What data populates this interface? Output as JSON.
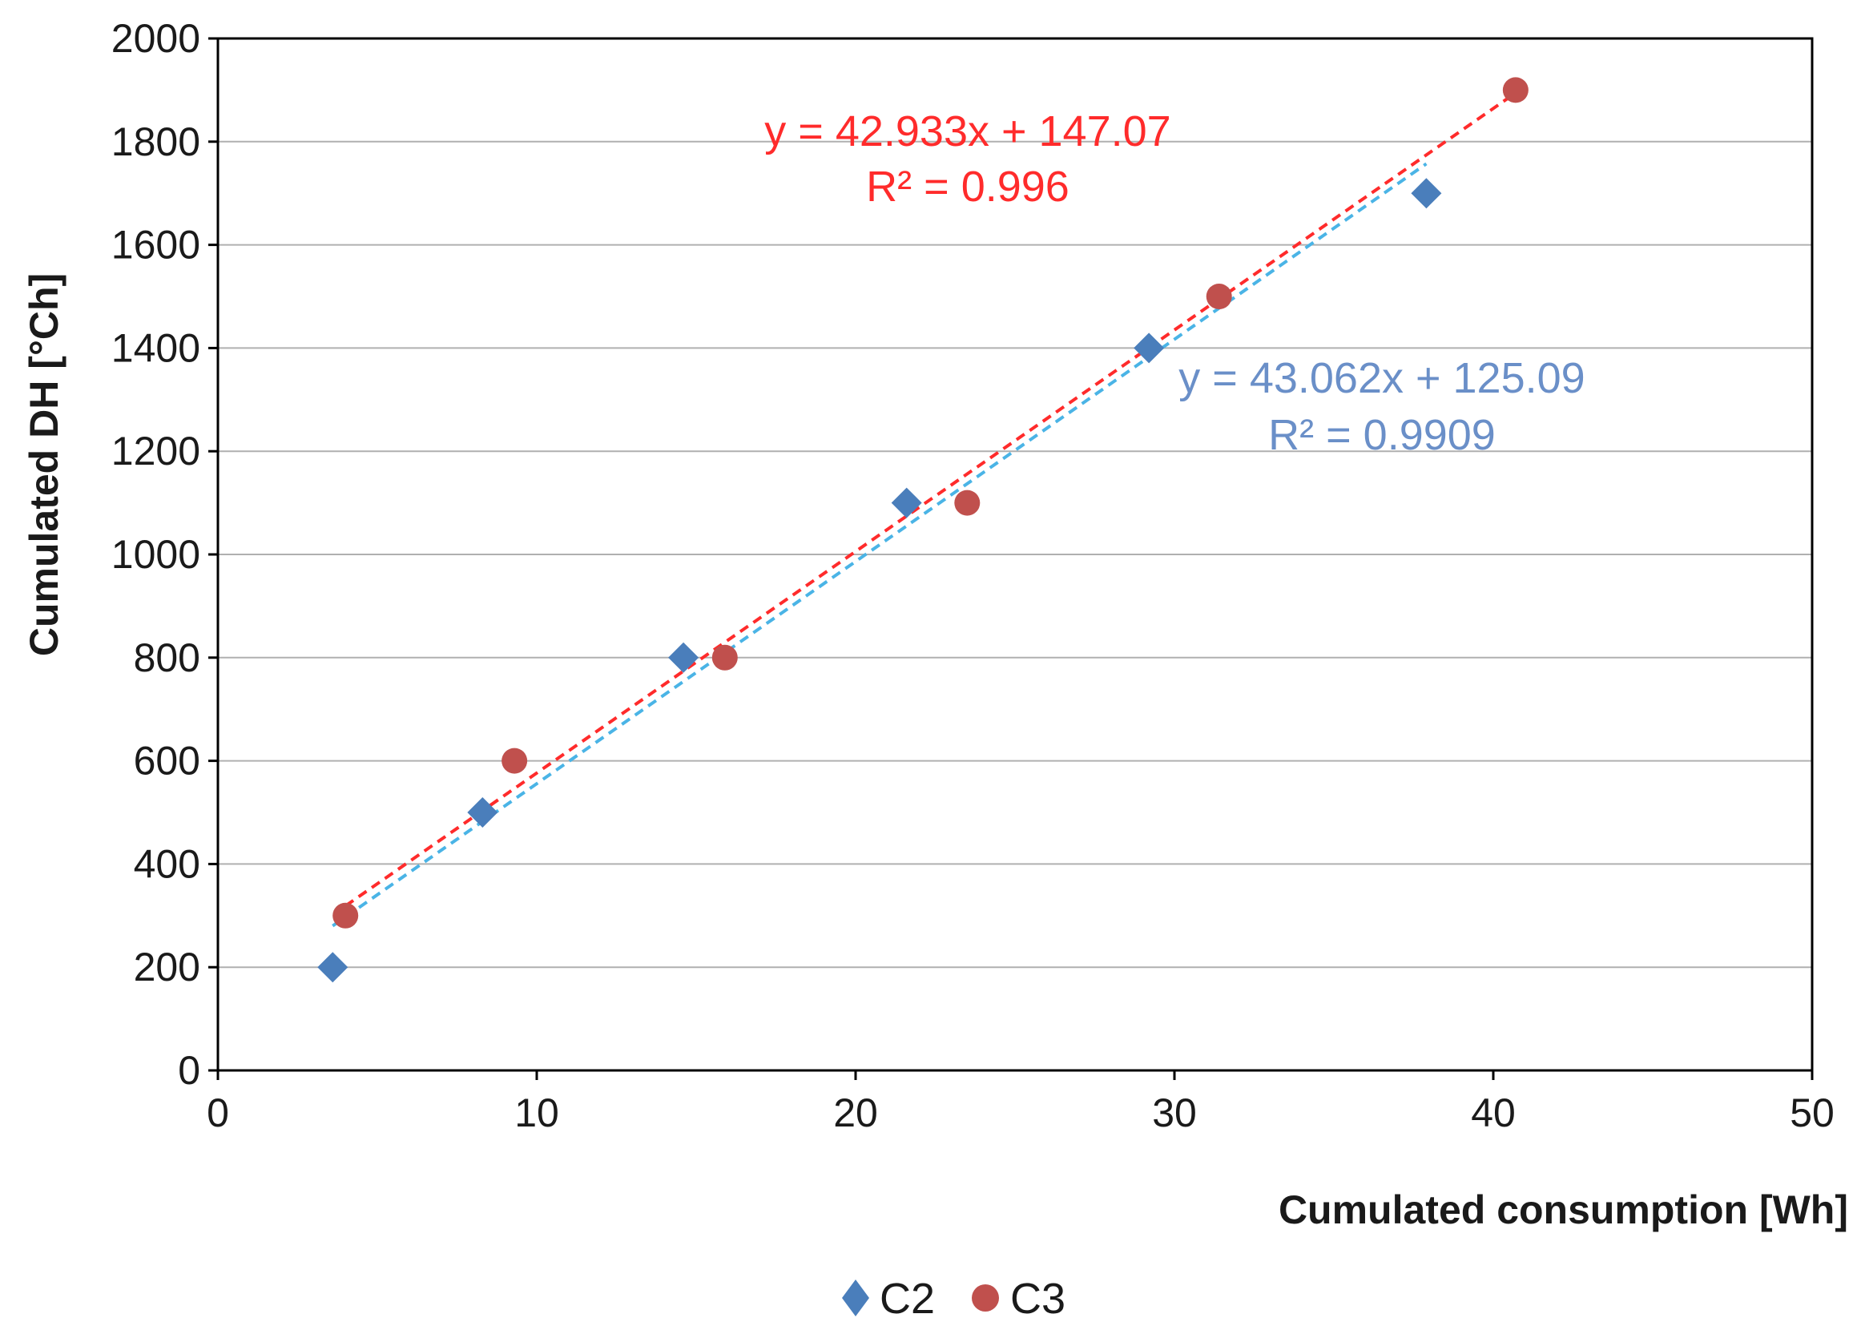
{
  "chart_data": {
    "type": "scatter",
    "title": "",
    "xlabel": "Cumulated  consumption  [Wh]",
    "ylabel": "Cumulated DH [°Ch]",
    "xlim": [
      0,
      50
    ],
    "ylim": [
      0,
      2000
    ],
    "xticks": [
      0,
      10,
      20,
      30,
      40,
      50
    ],
    "yticks": [
      0,
      200,
      400,
      600,
      800,
      1000,
      1200,
      1400,
      1600,
      1800,
      2000
    ],
    "grid": "horizontal",
    "legend_position": "bottom",
    "series": [
      {
        "name": "C2",
        "marker": "diamond",
        "color": "#4a7ebb",
        "trend_color": "#4ab4e6",
        "x": [
          3.6,
          8.3,
          14.6,
          21.6,
          29.2,
          37.9
        ],
        "y": [
          200,
          500,
          800,
          1100,
          1400,
          1700
        ],
        "trendline": {
          "slope": 43.062,
          "intercept": 125.09,
          "x_range": [
            3.6,
            37.9
          ],
          "equation": "y = 43.062x  + 125.09",
          "r2": "R² = 0.9909",
          "label_color": "#6a8fc8"
        }
      },
      {
        "name": "C3",
        "marker": "circle",
        "color": "#c0504d",
        "trend_color": "#ff2b2b",
        "x": [
          4.0,
          9.3,
          15.9,
          23.5,
          31.4,
          40.7
        ],
        "y": [
          300,
          600,
          800,
          1100,
          1500,
          1900
        ],
        "trendline": {
          "slope": 42.933,
          "intercept": 147.07,
          "x_range": [
            4.0,
            40.7
          ],
          "equation": "y = 42.933x  + 147.07",
          "r2": "R² = 0.996",
          "label_color": "#ff2b2b"
        }
      }
    ]
  }
}
